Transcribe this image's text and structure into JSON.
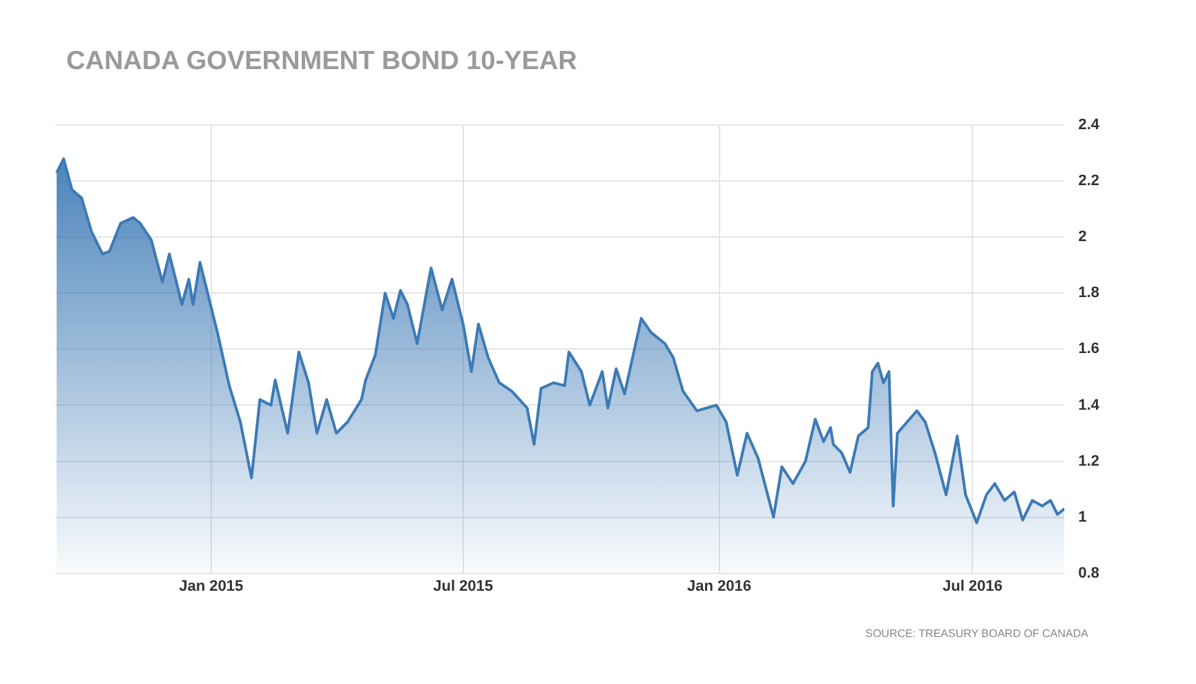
{
  "chart_data": {
    "type": "area",
    "title": "CANADA GOVERNMENT BOND 10-YEAR",
    "annotations": [
      "SOURCE: TREASURY BOARD OF CANADA"
    ],
    "x": [
      "2014-09-12",
      "2014-09-17",
      "2014-09-23",
      "2014-09-30",
      "2014-10-07",
      "2014-10-15",
      "2014-10-20",
      "2014-10-28",
      "2014-11-06",
      "2014-11-11",
      "2014-11-19",
      "2014-11-27",
      "2014-12-02",
      "2014-12-11",
      "2014-12-16",
      "2014-12-19",
      "2014-12-24",
      "2015-01-06",
      "2015-01-14",
      "2015-01-22",
      "2015-01-30",
      "2015-02-05",
      "2015-02-13",
      "2015-02-16",
      "2015-02-25",
      "2015-03-05",
      "2015-03-12",
      "2015-03-18",
      "2015-03-25",
      "2015-04-01",
      "2015-04-09",
      "2015-04-19",
      "2015-04-22",
      "2015-04-29",
      "2015-05-06",
      "2015-05-12",
      "2015-05-17",
      "2015-05-22",
      "2015-05-29",
      "2015-06-05",
      "2015-06-08",
      "2015-06-16",
      "2015-06-23",
      "2015-07-01",
      "2015-07-07",
      "2015-07-12",
      "2015-07-19",
      "2015-07-27",
      "2015-08-05",
      "2015-08-16",
      "2015-08-21",
      "2015-08-26",
      "2015-09-04",
      "2015-09-12",
      "2015-09-15",
      "2015-09-24",
      "2015-09-30",
      "2015-10-09",
      "2015-10-13",
      "2015-10-19",
      "2015-10-25",
      "2015-11-06",
      "2015-11-13",
      "2015-11-23",
      "2015-11-29",
      "2015-12-06",
      "2015-12-16",
      "2015-12-30",
      "2016-01-06",
      "2016-01-14",
      "2016-01-21",
      "2016-01-29",
      "2016-02-09",
      "2016-02-15",
      "2016-02-23",
      "2016-03-03",
      "2016-03-10",
      "2016-03-16",
      "2016-03-21",
      "2016-03-23",
      "2016-03-29",
      "2016-04-04",
      "2016-04-10",
      "2016-04-17",
      "2016-04-20",
      "2016-04-24",
      "2016-04-28",
      "2016-05-02",
      "2016-05-05",
      "2016-05-08",
      "2016-05-15",
      "2016-05-22",
      "2016-05-28",
      "2016-06-04",
      "2016-06-12",
      "2016-06-20",
      "2016-06-26",
      "2016-07-04",
      "2016-07-11",
      "2016-07-17",
      "2016-07-24",
      "2016-07-31",
      "2016-08-06",
      "2016-08-13",
      "2016-08-20",
      "2016-08-26",
      "2016-08-31",
      "2016-09-05"
    ],
    "series": [
      {
        "color": "#3d7ab5",
        "values": [
          2.23,
          2.28,
          2.17,
          2.14,
          2.02,
          1.94,
          1.95,
          2.05,
          2.07,
          2.05,
          1.99,
          1.84,
          1.94,
          1.76,
          1.85,
          1.76,
          1.91,
          1.65,
          1.47,
          1.34,
          1.14,
          1.42,
          1.4,
          1.49,
          1.3,
          1.59,
          1.48,
          1.3,
          1.42,
          1.3,
          1.34,
          1.42,
          1.49,
          1.58,
          1.8,
          1.71,
          1.81,
          1.76,
          1.62,
          1.81,
          1.89,
          1.74,
          1.85,
          1.69,
          1.52,
          1.69,
          1.57,
          1.48,
          1.45,
          1.39,
          1.26,
          1.46,
          1.48,
          1.47,
          1.59,
          1.52,
          1.4,
          1.52,
          1.39,
          1.53,
          1.44,
          1.71,
          1.66,
          1.62,
          1.57,
          1.45,
          1.38,
          1.4,
          1.34,
          1.15,
          1.3,
          1.21,
          1.0,
          1.18,
          1.12,
          1.2,
          1.35,
          1.27,
          1.32,
          1.26,
          1.23,
          1.16,
          1.29,
          1.32,
          1.52,
          1.55,
          1.48,
          1.52,
          1.04,
          1.3,
          1.34,
          1.38,
          1.34,
          1.23,
          1.08,
          1.29,
          1.08,
          0.98,
          1.08,
          1.12,
          1.06,
          1.09,
          0.99,
          1.06,
          1.04,
          1.06,
          1.01,
          1.03
        ]
      }
    ],
    "xlim": [
      "2014-09-11",
      "2016-09-05"
    ],
    "xticks": [
      {
        "value": "2015-01-01",
        "label": "Jan 2015"
      },
      {
        "value": "2015-07-01",
        "label": "Jul 2015"
      },
      {
        "value": "2016-01-01",
        "label": "Jan 2016"
      },
      {
        "value": "2016-07-01",
        "label": "Jul 2016"
      }
    ],
    "ylim": [
      0.8,
      2.4
    ],
    "yticks": [
      0.8,
      1,
      1.2,
      1.4,
      1.6,
      1.8,
      2,
      2.2,
      2.4
    ],
    "grid": true,
    "legend": false
  }
}
